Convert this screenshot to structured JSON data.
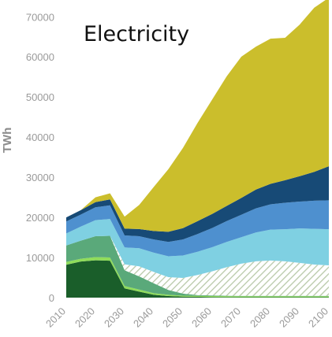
{
  "chart_data": {
    "type": "area",
    "stacked": true,
    "title": "Electricity",
    "ylabel": "TWh",
    "xlabel": "",
    "x": [
      2010,
      2015,
      2020,
      2025,
      2030,
      2035,
      2040,
      2045,
      2050,
      2055,
      2060,
      2065,
      2070,
      2075,
      2080,
      2085,
      2090,
      2095,
      2100
    ],
    "x_ticks": [
      "2010",
      "2020",
      "2030",
      "2040",
      "2050",
      "2060",
      "2070",
      "2080",
      "2090",
      "2100"
    ],
    "y_ticks": [
      "0",
      "10000",
      "20000",
      "30000",
      "40000",
      "50000",
      "60000",
      "70000"
    ],
    "ylim": [
      0,
      73000
    ],
    "xlim": [
      2010,
      2100
    ],
    "grid": false,
    "legend": "none",
    "series": [
      {
        "color": "#1a5e2a",
        "pattern": "none",
        "values": [
          8200,
          9000,
          9300,
          9200,
          2300,
          1500,
          700,
          400,
          250,
          200,
          150,
          120,
          100,
          100,
          100,
          100,
          100,
          100,
          100
        ]
      },
      {
        "color": "#8fdc5a",
        "pattern": "none",
        "values": [
          700,
          700,
          800,
          800,
          600,
          500,
          400,
          300,
          250,
          250,
          250,
          250,
          250,
          250,
          250,
          250,
          250,
          250,
          250
        ]
      },
      {
        "color": "#5aa97a",
        "pattern": "none",
        "values": [
          4100,
          4500,
          5200,
          5400,
          3900,
          3300,
          2500,
          1200,
          500,
          200,
          150,
          100,
          100,
          100,
          100,
          100,
          100,
          100,
          100
        ]
      },
      {
        "color": "#b8c9a8",
        "pattern": "hatch",
        "values": [
          0,
          0,
          0,
          0,
          1500,
          2500,
          2800,
          3200,
          3900,
          5000,
          6000,
          7100,
          8000,
          8600,
          8800,
          8600,
          8200,
          7800,
          7600
        ]
      },
      {
        "color": "#7fd0e2",
        "pattern": "none",
        "values": [
          3000,
          3500,
          4000,
          4200,
          4200,
          4500,
          4800,
          5200,
          5600,
          5800,
          6000,
          6300,
          6600,
          7200,
          7700,
          8000,
          8600,
          8900,
          9000
        ]
      },
      {
        "color": "#4e90cf",
        "pattern": "none",
        "values": [
          3000,
          3000,
          3200,
          3400,
          3000,
          3000,
          3300,
          3600,
          4000,
          4400,
          4800,
          5200,
          5600,
          6000,
          6300,
          6600,
          6700,
          7000,
          7200
        ]
      },
      {
        "color": "#174a76",
        "pattern": "none",
        "values": [
          1000,
          1100,
          1300,
          1500,
          1700,
          1800,
          2100,
          2500,
          2800,
          3200,
          3500,
          3800,
          4200,
          4700,
          5100,
          5600,
          6300,
          7200,
          8500
        ]
      },
      {
        "color": "#cbbe2c",
        "pattern": "none",
        "values": [
          0,
          0,
          1200,
          1500,
          3000,
          6000,
          11000,
          15600,
          20000,
          24500,
          28500,
          32300,
          35200,
          35600,
          36200,
          35500,
          37800,
          40900,
          42000
        ]
      }
    ]
  }
}
